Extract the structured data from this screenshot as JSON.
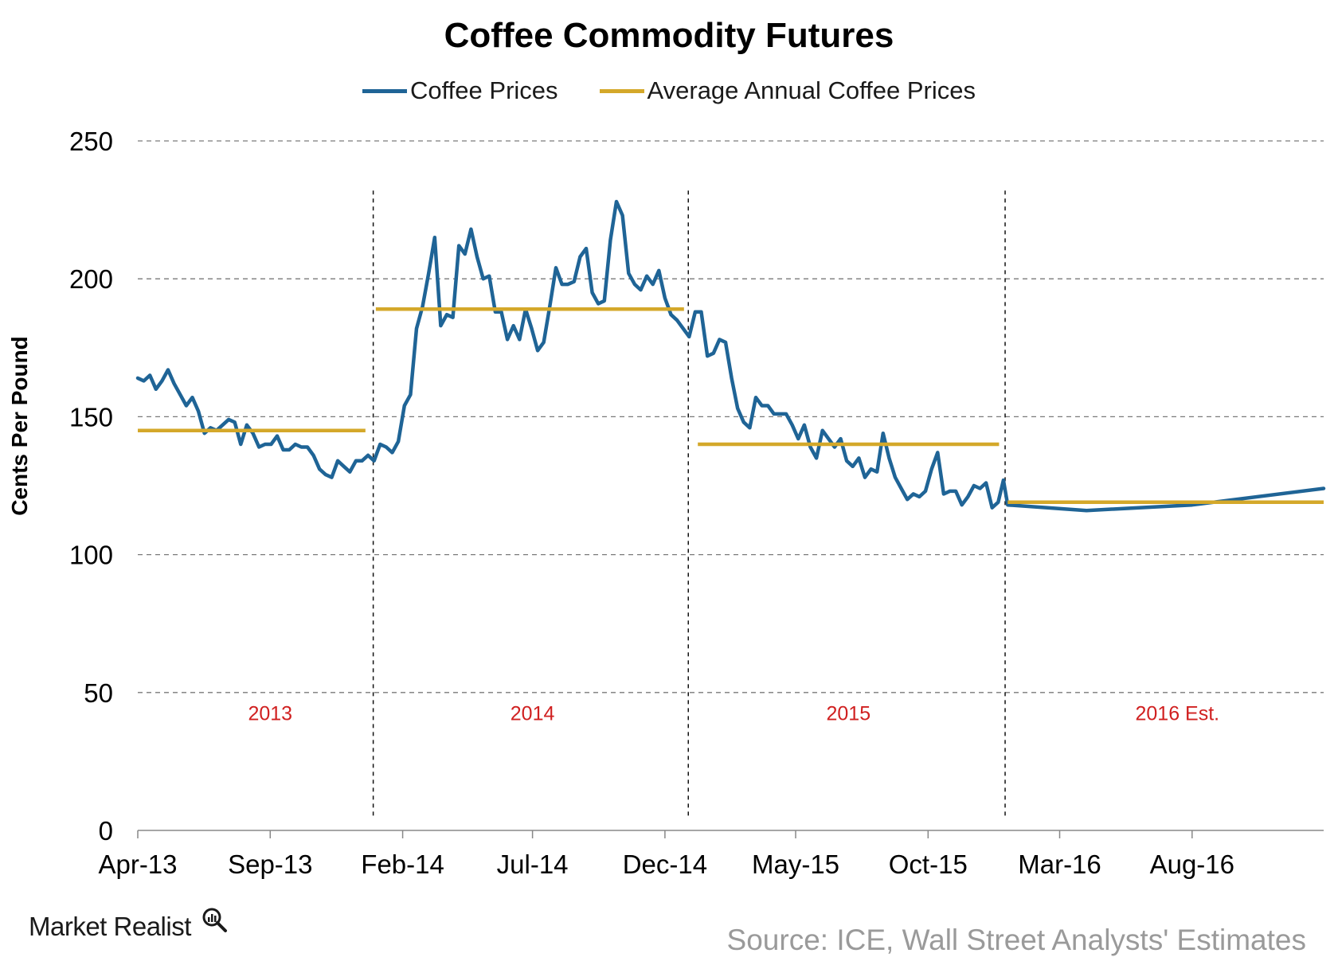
{
  "chart_data": {
    "type": "line",
    "title": "Coffee Commodity Futures",
    "ylabel": "Cents Per Pound",
    "xlabel": "",
    "ylim": [
      0,
      250
    ],
    "yticks": [
      0,
      50,
      100,
      150,
      200,
      250
    ],
    "xtick_labels": [
      "Apr-13",
      "Sep-13",
      "Feb-14",
      "Jul-14",
      "Dec-14",
      "May-15",
      "Oct-15",
      "Mar-16",
      "Aug-16"
    ],
    "x_start": "2013-04-01",
    "x_end": "2016-12-31",
    "grid": "horizontal dashed",
    "legend_position": "top-center",
    "year_dividers": [
      "2013-12-29",
      "2014-12-28",
      "2015-12-29"
    ],
    "year_labels": [
      {
        "text": "2013",
        "date": "2013-09-01"
      },
      {
        "text": "2014",
        "date": "2014-07-01"
      },
      {
        "text": "2015",
        "date": "2015-07-01"
      },
      {
        "text": "2016 Est.",
        "date": "2016-07-15"
      }
    ],
    "series": [
      {
        "name": "Coffee Prices",
        "color": "#1f6496",
        "points": [
          [
            "2013-04-01",
            164
          ],
          [
            "2013-04-08",
            163
          ],
          [
            "2013-04-15",
            165
          ],
          [
            "2013-04-22",
            160
          ],
          [
            "2013-04-29",
            163
          ],
          [
            "2013-05-06",
            167
          ],
          [
            "2013-05-13",
            162
          ],
          [
            "2013-05-20",
            158
          ],
          [
            "2013-05-27",
            154
          ],
          [
            "2013-06-03",
            157
          ],
          [
            "2013-06-10",
            152
          ],
          [
            "2013-06-17",
            144
          ],
          [
            "2013-06-24",
            146
          ],
          [
            "2013-07-01",
            145
          ],
          [
            "2013-07-08",
            147
          ],
          [
            "2013-07-15",
            149
          ],
          [
            "2013-07-22",
            148
          ],
          [
            "2013-07-29",
            140
          ],
          [
            "2013-08-05",
            147
          ],
          [
            "2013-08-12",
            144
          ],
          [
            "2013-08-19",
            139
          ],
          [
            "2013-08-26",
            140
          ],
          [
            "2013-09-02",
            140
          ],
          [
            "2013-09-09",
            143
          ],
          [
            "2013-09-16",
            138
          ],
          [
            "2013-09-23",
            138
          ],
          [
            "2013-09-30",
            140
          ],
          [
            "2013-10-07",
            139
          ],
          [
            "2013-10-14",
            139
          ],
          [
            "2013-10-21",
            136
          ],
          [
            "2013-10-28",
            131
          ],
          [
            "2013-11-04",
            129
          ],
          [
            "2013-11-11",
            128
          ],
          [
            "2013-11-18",
            134
          ],
          [
            "2013-11-25",
            132
          ],
          [
            "2013-12-02",
            130
          ],
          [
            "2013-12-09",
            134
          ],
          [
            "2013-12-16",
            134
          ],
          [
            "2013-12-23",
            136
          ],
          [
            "2013-12-30",
            134
          ],
          [
            "2014-01-06",
            140
          ],
          [
            "2014-01-13",
            139
          ],
          [
            "2014-01-20",
            137
          ],
          [
            "2014-01-27",
            141
          ],
          [
            "2014-02-03",
            154
          ],
          [
            "2014-02-10",
            158
          ],
          [
            "2014-02-17",
            182
          ],
          [
            "2014-02-24",
            190
          ],
          [
            "2014-03-03",
            202
          ],
          [
            "2014-03-10",
            215
          ],
          [
            "2014-03-17",
            183
          ],
          [
            "2014-03-24",
            187
          ],
          [
            "2014-03-31",
            186
          ],
          [
            "2014-04-07",
            212
          ],
          [
            "2014-04-14",
            209
          ],
          [
            "2014-04-21",
            218
          ],
          [
            "2014-04-28",
            208
          ],
          [
            "2014-05-05",
            200
          ],
          [
            "2014-05-12",
            201
          ],
          [
            "2014-05-19",
            188
          ],
          [
            "2014-05-26",
            188
          ],
          [
            "2014-06-02",
            178
          ],
          [
            "2014-06-09",
            183
          ],
          [
            "2014-06-16",
            178
          ],
          [
            "2014-06-23",
            189
          ],
          [
            "2014-06-30",
            182
          ],
          [
            "2014-07-07",
            174
          ],
          [
            "2014-07-14",
            177
          ],
          [
            "2014-07-21",
            190
          ],
          [
            "2014-07-28",
            204
          ],
          [
            "2014-08-04",
            198
          ],
          [
            "2014-08-11",
            198
          ],
          [
            "2014-08-18",
            199
          ],
          [
            "2014-08-25",
            208
          ],
          [
            "2014-09-01",
            211
          ],
          [
            "2014-09-08",
            195
          ],
          [
            "2014-09-15",
            191
          ],
          [
            "2014-09-22",
            192
          ],
          [
            "2014-09-29",
            214
          ],
          [
            "2014-10-06",
            228
          ],
          [
            "2014-10-13",
            223
          ],
          [
            "2014-10-20",
            202
          ],
          [
            "2014-10-27",
            198
          ],
          [
            "2014-11-03",
            196
          ],
          [
            "2014-11-10",
            201
          ],
          [
            "2014-11-17",
            198
          ],
          [
            "2014-11-24",
            203
          ],
          [
            "2014-12-01",
            193
          ],
          [
            "2014-12-08",
            187
          ],
          [
            "2014-12-15",
            185
          ],
          [
            "2014-12-22",
            182
          ],
          [
            "2014-12-29",
            179
          ],
          [
            "2015-01-05",
            188
          ],
          [
            "2015-01-12",
            188
          ],
          [
            "2015-01-19",
            172
          ],
          [
            "2015-01-26",
            173
          ],
          [
            "2015-02-02",
            178
          ],
          [
            "2015-02-09",
            177
          ],
          [
            "2015-02-16",
            164
          ],
          [
            "2015-02-23",
            153
          ],
          [
            "2015-03-02",
            148
          ],
          [
            "2015-03-09",
            146
          ],
          [
            "2015-03-16",
            157
          ],
          [
            "2015-03-23",
            154
          ],
          [
            "2015-03-30",
            154
          ],
          [
            "2015-04-06",
            151
          ],
          [
            "2015-04-13",
            151
          ],
          [
            "2015-04-20",
            151
          ],
          [
            "2015-04-27",
            147
          ],
          [
            "2015-05-04",
            142
          ],
          [
            "2015-05-11",
            147
          ],
          [
            "2015-05-18",
            139
          ],
          [
            "2015-05-25",
            135
          ],
          [
            "2015-06-01",
            145
          ],
          [
            "2015-06-08",
            142
          ],
          [
            "2015-06-15",
            139
          ],
          [
            "2015-06-22",
            142
          ],
          [
            "2015-06-29",
            134
          ],
          [
            "2015-07-06",
            132
          ],
          [
            "2015-07-13",
            135
          ],
          [
            "2015-07-20",
            128
          ],
          [
            "2015-07-27",
            131
          ],
          [
            "2015-08-03",
            130
          ],
          [
            "2015-08-10",
            144
          ],
          [
            "2015-08-17",
            135
          ],
          [
            "2015-08-24",
            128
          ],
          [
            "2015-08-31",
            124
          ],
          [
            "2015-09-07",
            120
          ],
          [
            "2015-09-14",
            122
          ],
          [
            "2015-09-21",
            121
          ],
          [
            "2015-09-28",
            123
          ],
          [
            "2015-10-05",
            131
          ],
          [
            "2015-10-12",
            137
          ],
          [
            "2015-10-19",
            122
          ],
          [
            "2015-10-26",
            123
          ],
          [
            "2015-11-02",
            123
          ],
          [
            "2015-11-09",
            118
          ],
          [
            "2015-11-16",
            121
          ],
          [
            "2015-11-23",
            125
          ],
          [
            "2015-11-30",
            124
          ],
          [
            "2015-12-07",
            126
          ],
          [
            "2015-12-14",
            117
          ],
          [
            "2015-12-21",
            119
          ],
          [
            "2015-12-27",
            127
          ],
          [
            "2016-01-01",
            118
          ],
          [
            "2016-04-01",
            116
          ],
          [
            "2016-08-01",
            118
          ],
          [
            "2016-12-31",
            124
          ]
        ]
      },
      {
        "name": "Average Annual Coffee Prices",
        "color": "#d4a82a",
        "segments": [
          {
            "from": "2013-04-01",
            "to": "2013-12-20",
            "value": 145
          },
          {
            "from": "2014-01-01",
            "to": "2014-12-23",
            "value": 189
          },
          {
            "from": "2015-01-08",
            "to": "2015-12-22",
            "value": 140
          },
          {
            "from": "2016-01-01",
            "to": "2016-12-31",
            "value": 119
          }
        ]
      }
    ]
  },
  "branding": {
    "name": "Market Realist"
  },
  "source": "Source: ICE, Wall Street Analysts' Estimates"
}
